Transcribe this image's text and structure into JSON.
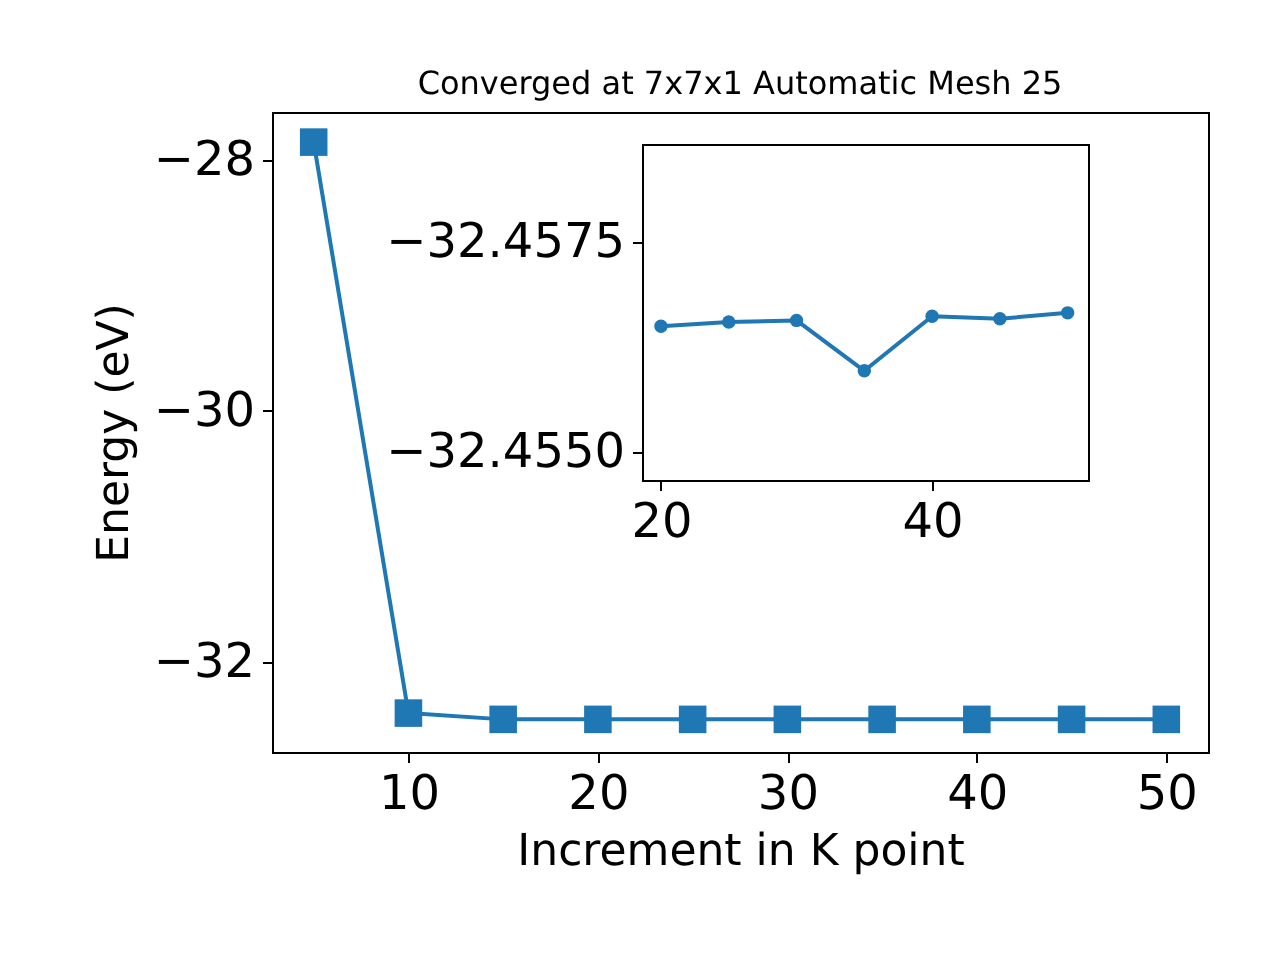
{
  "chart_data": [
    {
      "type": "line",
      "title": "Converged at 7x7x1 Automatic Mesh 25",
      "xlabel": "Increment in K point",
      "ylabel": "Energy (eV)",
      "x": [
        5,
        10,
        15,
        20,
        25,
        30,
        35,
        40,
        45,
        50
      ],
      "series": [
        {
          "color": "#1f77b4",
          "values": [
            -27.86,
            -32.41,
            -32.46,
            -32.46,
            -32.46,
            -32.46,
            -32.46,
            -32.46,
            -32.46,
            -32.46
          ]
        }
      ],
      "xlim": [
        2.8,
        52.2
      ],
      "xticks": [
        10,
        20,
        30,
        40,
        50
      ],
      "ylim": [
        -32.72,
        -27.62
      ],
      "yticks": [
        -32,
        -30,
        -28
      ],
      "marker": "square",
      "grid": false,
      "legend": false
    },
    {
      "type": "line",
      "x": [
        20,
        25,
        30,
        35,
        40,
        45,
        50
      ],
      "series": [
        {
          "color": "#1f77b4",
          "values": [
            -32.4565,
            -32.45655,
            -32.45657,
            -32.45597,
            -32.45662,
            -32.45659,
            -32.45666
          ]
        }
      ],
      "xlim": [
        18.6,
        51.5
      ],
      "xticks": [
        20,
        40
      ],
      "ylim": [
        -32.45467,
        -32.45867
      ],
      "yticks": [
        {
          "value": -32.4575,
          "label": "−32.4575"
        },
        {
          "value": -32.455,
          "label": "−32.4550"
        }
      ],
      "marker": "circle",
      "grid": false,
      "legend": false
    }
  ]
}
